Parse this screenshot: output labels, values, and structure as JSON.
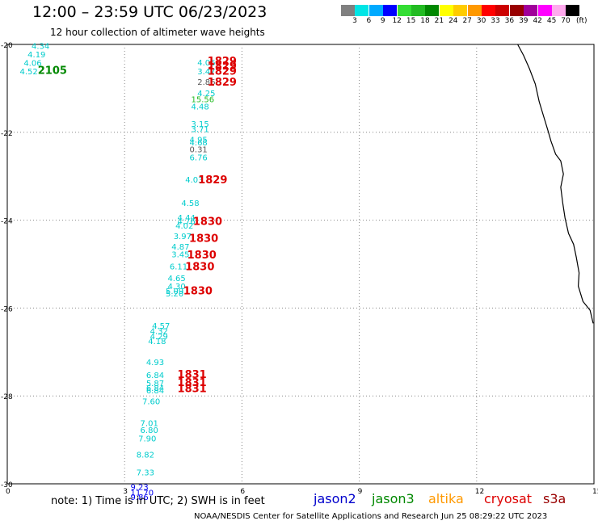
{
  "header": {
    "title": "12:00 – 23:59 UTC 06/23/2023",
    "subtitle": "12 hour collection of altimeter wave heights"
  },
  "color_scale": {
    "unit": "(ft)",
    "bins": [
      {
        "label": "3",
        "color": "#808080"
      },
      {
        "label": "6",
        "color": "#00e5e5"
      },
      {
        "label": "9",
        "color": "#00aaff"
      },
      {
        "label": "12",
        "color": "#0000ff"
      },
      {
        "label": "15",
        "color": "#33dd33"
      },
      {
        "label": "18",
        "color": "#22bb22"
      },
      {
        "label": "21",
        "color": "#008800"
      },
      {
        "label": "24",
        "color": "#ffff00"
      },
      {
        "label": "27",
        "color": "#ffcc00"
      },
      {
        "label": "30",
        "color": "#ff9900"
      },
      {
        "label": "33",
        "color": "#ff0000"
      },
      {
        "label": "36",
        "color": "#cc0000"
      },
      {
        "label": "39",
        "color": "#990000"
      },
      {
        "label": "42",
        "color": "#a0009a"
      },
      {
        "label": "45",
        "color": "#ff00ff"
      },
      {
        "label": "70",
        "color": "#ffaaee"
      },
      {
        "label": "",
        "color": "#000000"
      }
    ]
  },
  "map": {
    "y_ticks": [
      "-20",
      "-22",
      "-24",
      "-26",
      "-28",
      "-30"
    ],
    "x_ticks": [
      "0",
      "3",
      "6",
      "9",
      "12",
      "15"
    ],
    "xlim": [
      0,
      15
    ],
    "ylim": [
      -30,
      -20
    ],
    "observations": [
      {
        "lon": 0.62,
        "lat": -20.03,
        "value": "4.34",
        "color": "#00cccc"
      },
      {
        "lon": 0.52,
        "lat": -20.22,
        "value": "4.19",
        "color": "#00cccc"
      },
      {
        "lon": 0.42,
        "lat": -20.41,
        "value": "4.06",
        "color": "#00cccc"
      },
      {
        "lon": 0.32,
        "lat": -20.61,
        "value": "4.52",
        "color": "#00cccc"
      },
      {
        "lon": 4.86,
        "lat": -20.4,
        "value": "4.06",
        "color": "#00cccc"
      },
      {
        "lon": 4.86,
        "lat": -20.61,
        "value": "3.47",
        "color": "#00cccc"
      },
      {
        "lon": 4.86,
        "lat": -20.85,
        "value": "2.86",
        "color": "#555555"
      },
      {
        "lon": 4.86,
        "lat": -21.1,
        "value": "4.25",
        "color": "#00cccc"
      },
      {
        "lon": 4.7,
        "lat": -21.24,
        "value": "15.56",
        "color": "#22bb22"
      },
      {
        "lon": 4.7,
        "lat": -21.41,
        "value": "4.48",
        "color": "#00cccc"
      },
      {
        "lon": 4.7,
        "lat": -21.8,
        "value": "3.15",
        "color": "#00cccc"
      },
      {
        "lon": 4.7,
        "lat": -21.92,
        "value": "3.71",
        "color": "#00cccc"
      },
      {
        "lon": 4.66,
        "lat": -22.16,
        "value": "4.95",
        "color": "#00cccc"
      },
      {
        "lon": 4.66,
        "lat": -22.22,
        "value": "4.68",
        "color": "#00cccc"
      },
      {
        "lon": 4.66,
        "lat": -22.38,
        "value": "0.31",
        "color": "#555555"
      },
      {
        "lon": 4.66,
        "lat": -22.56,
        "value": "6.76",
        "color": "#00cccc"
      },
      {
        "lon": 4.55,
        "lat": -23.07,
        "value": "4.03",
        "color": "#00cccc"
      },
      {
        "lon": 4.45,
        "lat": -23.6,
        "value": "4.58",
        "color": "#00cccc"
      },
      {
        "lon": 4.35,
        "lat": -23.93,
        "value": "4.44",
        "color": "#00cccc"
      },
      {
        "lon": 4.35,
        "lat": -24.02,
        "value": "4.76",
        "color": "#00cccc"
      },
      {
        "lon": 4.3,
        "lat": -24.12,
        "value": "4.02",
        "color": "#00cccc"
      },
      {
        "lon": 4.25,
        "lat": -24.36,
        "value": "3.97",
        "color": "#00cccc"
      },
      {
        "lon": 4.2,
        "lat": -24.6,
        "value": "4.87",
        "color": "#00cccc"
      },
      {
        "lon": 4.2,
        "lat": -24.77,
        "value": "3.45",
        "color": "#00cccc"
      },
      {
        "lon": 4.15,
        "lat": -25.05,
        "value": "6.11",
        "color": "#00cccc"
      },
      {
        "lon": 4.1,
        "lat": -25.31,
        "value": "4.65",
        "color": "#00cccc"
      },
      {
        "lon": 4.1,
        "lat": -25.5,
        "value": "4.30",
        "color": "#00cccc"
      },
      {
        "lon": 4.05,
        "lat": -25.61,
        "value": "5.09",
        "color": "#00cccc"
      },
      {
        "lon": 4.05,
        "lat": -25.66,
        "value": "5.20",
        "color": "#00cccc"
      },
      {
        "lon": 3.7,
        "lat": -26.4,
        "value": "4.57",
        "color": "#00cccc"
      },
      {
        "lon": 3.65,
        "lat": -26.52,
        "value": "4.32",
        "color": "#00cccc"
      },
      {
        "lon": 3.65,
        "lat": -26.64,
        "value": "4.29",
        "color": "#00cccc"
      },
      {
        "lon": 3.6,
        "lat": -26.75,
        "value": "4.18",
        "color": "#00cccc"
      },
      {
        "lon": 3.55,
        "lat": -27.22,
        "value": "4.93",
        "color": "#00cccc"
      },
      {
        "lon": 3.55,
        "lat": -27.52,
        "value": "6.84",
        "color": "#00cccc"
      },
      {
        "lon": 3.55,
        "lat": -27.7,
        "value": "5.87",
        "color": "#00cccc"
      },
      {
        "lon": 3.55,
        "lat": -27.81,
        "value": "6.84",
        "color": "#00cccc"
      },
      {
        "lon": 3.55,
        "lat": -27.87,
        "value": "6.84",
        "color": "#00cccc"
      },
      {
        "lon": 3.45,
        "lat": -28.12,
        "value": "7.60",
        "color": "#00cccc"
      },
      {
        "lon": 3.4,
        "lat": -28.61,
        "value": "7.01",
        "color": "#00cccc"
      },
      {
        "lon": 3.4,
        "lat": -28.77,
        "value": "6.80",
        "color": "#00cccc"
      },
      {
        "lon": 3.35,
        "lat": -28.96,
        "value": "7.90",
        "color": "#00cccc"
      },
      {
        "lon": 3.3,
        "lat": -29.33,
        "value": "8.82",
        "color": "#00cccc"
      },
      {
        "lon": 3.3,
        "lat": -29.73,
        "value": "7.33",
        "color": "#00cccc"
      },
      {
        "lon": 3.15,
        "lat": -30.06,
        "value": "9.23",
        "color": "#0000ee"
      },
      {
        "lon": 3.15,
        "lat": -30.19,
        "value": "11.70",
        "color": "#0000ee"
      },
      {
        "lon": 3.15,
        "lat": -30.29,
        "value": "9.86",
        "color": "#0000ee"
      }
    ],
    "pass_times": [
      {
        "lon": 0.78,
        "lat": -20.58,
        "label": "2105",
        "color": "#008800"
      },
      {
        "lon": 5.12,
        "lat": -20.37,
        "label": "1829",
        "color": "#dd0000"
      },
      {
        "lon": 5.12,
        "lat": -20.48,
        "label": "1829",
        "color": "#dd0000"
      },
      {
        "lon": 5.12,
        "lat": -20.6,
        "label": "1829",
        "color": "#dd0000"
      },
      {
        "lon": 5.12,
        "lat": -20.85,
        "label": "1829",
        "color": "#dd0000"
      },
      {
        "lon": 4.88,
        "lat": -23.07,
        "label": "1829",
        "color": "#dd0000"
      },
      {
        "lon": 4.75,
        "lat": -24.02,
        "label": "1830",
        "color": "#dd0000"
      },
      {
        "lon": 4.65,
        "lat": -24.4,
        "label": "1830",
        "color": "#dd0000"
      },
      {
        "lon": 4.6,
        "lat": -24.78,
        "label": "1830",
        "color": "#dd0000"
      },
      {
        "lon": 4.55,
        "lat": -25.05,
        "label": "1830",
        "color": "#dd0000"
      },
      {
        "lon": 4.5,
        "lat": -25.6,
        "label": "1830",
        "color": "#dd0000"
      },
      {
        "lon": 4.35,
        "lat": -27.5,
        "label": "1831",
        "color": "#dd0000"
      },
      {
        "lon": 4.35,
        "lat": -27.68,
        "label": "1831",
        "color": "#dd0000"
      },
      {
        "lon": 4.35,
        "lat": -27.82,
        "label": "1831",
        "color": "#dd0000"
      }
    ],
    "coastline": [
      [
        13.05,
        -20.0
      ],
      [
        13.2,
        -20.25
      ],
      [
        13.35,
        -20.55
      ],
      [
        13.5,
        -20.9
      ],
      [
        13.6,
        -21.3
      ],
      [
        13.7,
        -21.6
      ],
      [
        13.82,
        -21.95
      ],
      [
        13.9,
        -22.2
      ],
      [
        14.02,
        -22.5
      ],
      [
        14.15,
        -22.65
      ],
      [
        14.22,
        -22.95
      ],
      [
        14.15,
        -23.25
      ],
      [
        14.2,
        -23.6
      ],
      [
        14.26,
        -23.95
      ],
      [
        14.35,
        -24.3
      ],
      [
        14.48,
        -24.55
      ],
      [
        14.55,
        -24.85
      ],
      [
        14.62,
        -25.2
      ],
      [
        14.6,
        -25.5
      ],
      [
        14.72,
        -25.85
      ],
      [
        14.9,
        -26.05
      ],
      [
        14.98,
        -26.35
      ]
    ]
  },
  "footer": {
    "note": "note: 1) Time is in UTC; 2) SWH is in feet",
    "satellites": [
      {
        "name": "jason2",
        "color": "#0000cc"
      },
      {
        "name": "jason3",
        "color": "#008800"
      },
      {
        "name": "altika",
        "color": "#ff9900"
      },
      {
        "name": "cryosat",
        "color": "#dd0000"
      },
      {
        "name": "s3a",
        "color": "#990000"
      }
    ],
    "credit": "NOAA/NESDIS Center for Satellite Applications and Research     Jun 25 08:29:22 UTC 2023"
  }
}
